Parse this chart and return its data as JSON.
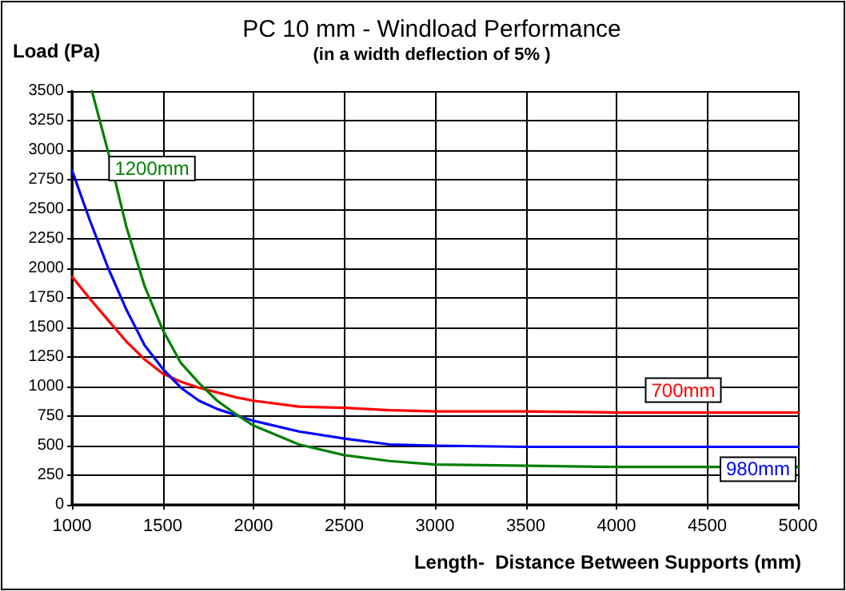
{
  "chart_data": {
    "type": "line",
    "title": "PC 10 mm - Windload Performance",
    "subtitle": "(in a width deflection of 5% )",
    "xlabel": "Length-  Distance Between Supports (mm)",
    "ylabel": "Load (Pa)",
    "xlim": [
      1000,
      5000
    ],
    "xticks": [
      1000,
      1500,
      2000,
      2500,
      3000,
      3500,
      4000,
      4500,
      5000
    ],
    "ylim": [
      0,
      3500
    ],
    "yticks": [
      0,
      250,
      500,
      750,
      1000,
      1250,
      1500,
      1750,
      2000,
      2250,
      2500,
      2750,
      3000,
      3250,
      3500
    ],
    "grid": true,
    "legend": false,
    "marker": "none",
    "line_style": "solid",
    "series": [
      {
        "name": "700mm",
        "color": "#ff0000",
        "x": [
          1000,
          1100,
          1200,
          1300,
          1400,
          1500,
          1600,
          1700,
          1800,
          1900,
          2000,
          2250,
          2500,
          2750,
          3000,
          3500,
          4000,
          4500,
          5000
        ],
        "values": [
          1930,
          1740,
          1560,
          1380,
          1230,
          1110,
          1040,
          990,
          950,
          910,
          880,
          830,
          820,
          800,
          790,
          790,
          780,
          780,
          780
        ]
      },
      {
        "name": "980mm",
        "color": "#0000ff",
        "x": [
          1000,
          1100,
          1200,
          1300,
          1400,
          1500,
          1600,
          1700,
          1800,
          1900,
          2000,
          2250,
          2500,
          2750,
          3000,
          3500,
          4000,
          4500,
          5000
        ],
        "values": [
          2830,
          2400,
          2000,
          1650,
          1350,
          1150,
          990,
          880,
          810,
          760,
          710,
          620,
          560,
          510,
          500,
          490,
          490,
          490,
          490
        ]
      },
      {
        "name": "1200mm",
        "color": "#008000",
        "x": [
          1110,
          1200,
          1300,
          1400,
          1500,
          1600,
          1700,
          1800,
          1900,
          2000,
          2250,
          2500,
          2750,
          3000,
          3500,
          4000,
          4500,
          5000
        ],
        "values": [
          3500,
          2980,
          2350,
          1850,
          1480,
          1200,
          1030,
          880,
          770,
          670,
          510,
          420,
          370,
          340,
          330,
          320,
          320,
          320
        ]
      }
    ]
  }
}
